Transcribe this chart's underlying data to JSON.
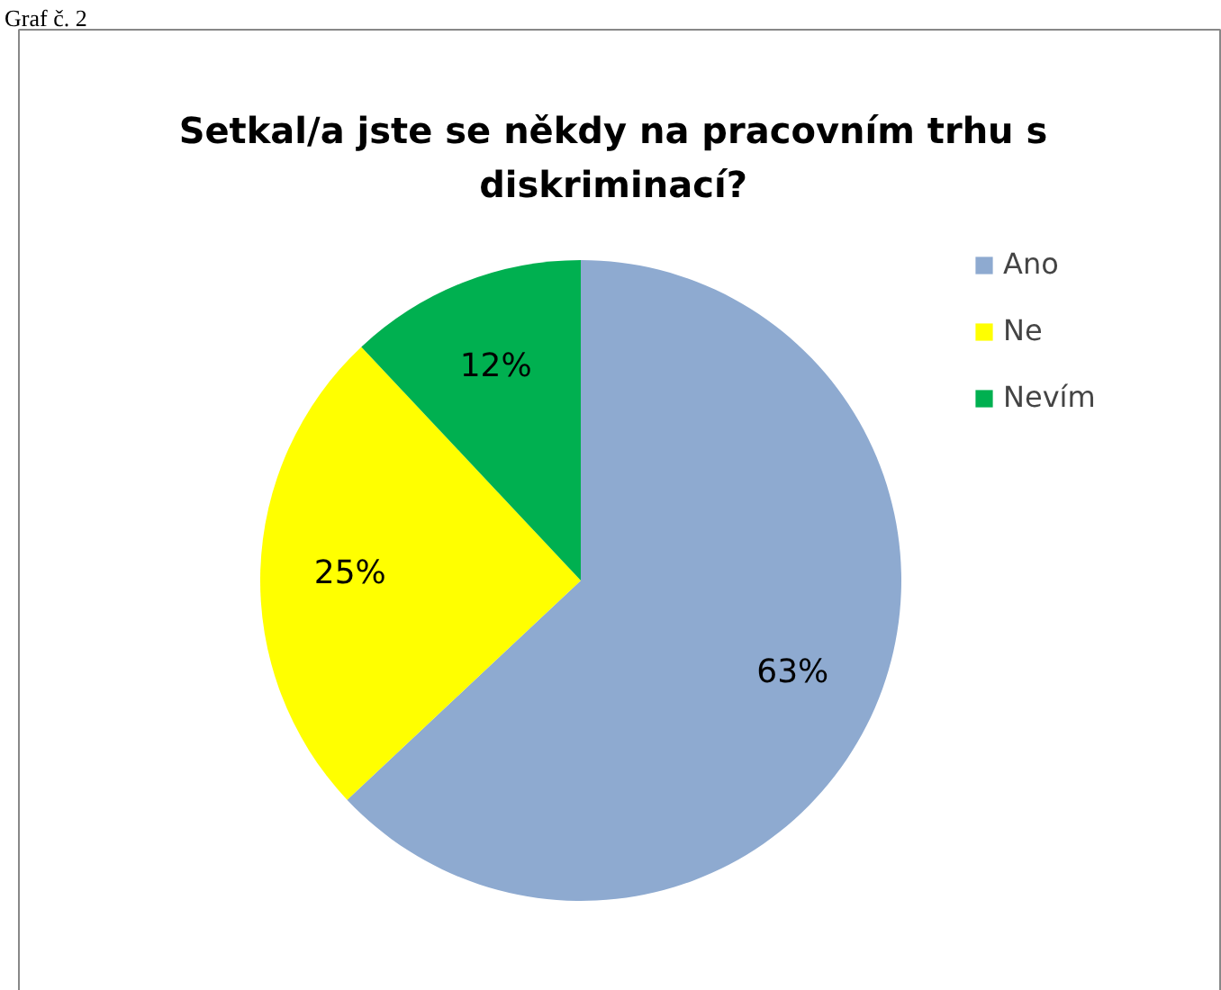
{
  "chart_data": {
    "type": "pie",
    "title": "Setkal/a jste se někdy na pracovním trhu s\ndiskriminací?",
    "categories": [
      "Ano",
      "Ne",
      "Nevím"
    ],
    "values": [
      63,
      25,
      12
    ],
    "colors": [
      "#8eaad0",
      "#ffff00",
      "#00b050"
    ],
    "value_labels": [
      "63%",
      "25%",
      "12%"
    ],
    "legend": "right",
    "annotations": [
      "Graf č. 2"
    ]
  }
}
